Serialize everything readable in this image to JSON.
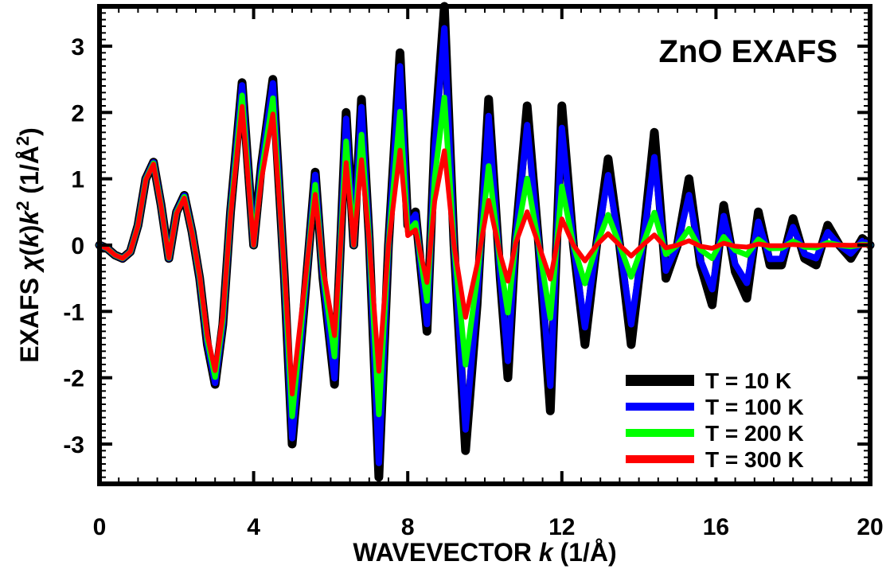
{
  "chart_data": {
    "type": "line",
    "title": "ZnO EXAFS",
    "xlabel": {
      "pre": "WAVEVECTOR ",
      "var": "k",
      "post": " (1/Å)"
    },
    "ylabel": {
      "pre": "EXAFS ",
      "chi": "χ",
      "open": "(",
      "k1": "k",
      "close": ")",
      "k2": "k",
      "sup": "2",
      "unit_pre": " (1/Å",
      "unit_sup": "2",
      "unit_post": ")"
    },
    "xlim": [
      0,
      20
    ],
    "ylim": [
      -3.6,
      3.6
    ],
    "x_ticks": [
      0,
      4,
      8,
      12,
      16,
      20
    ],
    "y_ticks": [
      -3,
      -2,
      -1,
      0,
      1,
      2,
      3
    ],
    "grid": false,
    "legend_position": "bottom-right",
    "series": [
      {
        "name": "T = 10 K",
        "color": "#000000",
        "sigma2": 0.0
      },
      {
        "name": "T = 100 K",
        "color": "#0000ff",
        "sigma2": 0.0006
      },
      {
        "name": "T = 200 K",
        "color": "#00ff00",
        "sigma2": 0.003
      },
      {
        "name": "T = 300 K",
        "color": "#ff0000",
        "sigma2": 0.0058
      }
    ],
    "x": [
      0,
      0.2,
      0.4,
      0.6,
      0.8,
      1.0,
      1.2,
      1.4,
      1.6,
      1.8,
      2.0,
      2.2,
      2.4,
      2.6,
      2.8,
      3.0,
      3.2,
      3.4,
      3.7,
      4.0,
      4.2,
      4.5,
      4.8,
      5.0,
      5.3,
      5.6,
      5.8,
      6.1,
      6.4,
      6.6,
      6.8,
      7.0,
      7.25,
      7.5,
      7.8,
      8.0,
      8.2,
      8.5,
      8.7,
      8.95,
      9.2,
      9.5,
      9.8,
      10.1,
      10.4,
      10.6,
      10.8,
      11.1,
      11.4,
      11.7,
      12.0,
      12.3,
      12.6,
      12.9,
      13.2,
      13.5,
      13.8,
      14.1,
      14.4,
      14.7,
      15.0,
      15.3,
      15.6,
      15.9,
      16.2,
      16.5,
      16.8,
      17.1,
      17.4,
      17.7,
      18.0,
      18.3,
      18.6,
      18.9,
      19.2,
      19.5,
      19.8,
      20.0
    ],
    "reference_values": [
      0,
      -0.05,
      -0.15,
      -0.2,
      -0.1,
      0.3,
      1.0,
      1.25,
      0.6,
      -0.2,
      0.5,
      0.75,
      0.2,
      -0.5,
      -1.5,
      -2.1,
      -1.2,
      0.5,
      2.45,
      0.0,
      1.2,
      2.5,
      -0.5,
      -3.0,
      -1.0,
      1.1,
      -0.5,
      -2.1,
      2.0,
      0.0,
      2.2,
      0.1,
      -3.5,
      0.0,
      2.9,
      0.3,
      0.5,
      -1.3,
      1.6,
      3.6,
      0.0,
      -3.1,
      -0.9,
      2.2,
      -0.5,
      -2.0,
      0.1,
      2.1,
      0.0,
      -2.5,
      2.1,
      0.0,
      -1.5,
      0.0,
      1.3,
      0.0,
      -1.5,
      0.0,
      1.7,
      -0.5,
      0.0,
      1.0,
      -0.3,
      -0.9,
      0.6,
      -0.4,
      -0.8,
      0.5,
      -0.3,
      -0.3,
      0.4,
      -0.2,
      -0.3,
      0.3,
      0.0,
      -0.2,
      0.1,
      0.0
    ]
  }
}
